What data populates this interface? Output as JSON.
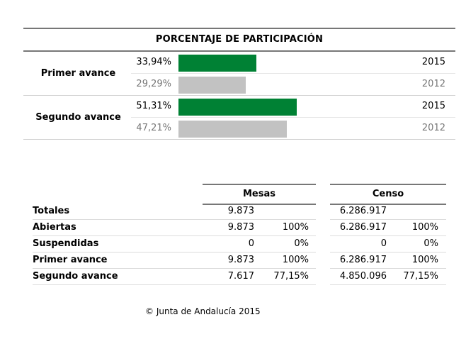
{
  "participation": {
    "title": "PORCENTAJE DE PARTICIPACIÓN",
    "colors": {
      "current": "#008134",
      "previous": "#c2c2c2"
    },
    "groups": [
      {
        "label": "Primer avance",
        "rows": [
          {
            "pct": "33,94%",
            "value": 33.94,
            "year": "2015"
          },
          {
            "pct": "29,29%",
            "value": 29.29,
            "year": "2012"
          }
        ]
      },
      {
        "label": "Segundo avance",
        "rows": [
          {
            "pct": "51,31%",
            "value": 51.31,
            "year": "2015"
          },
          {
            "pct": "47,21%",
            "value": 47.21,
            "year": "2012"
          }
        ]
      }
    ]
  },
  "table": {
    "headers": {
      "mesas": "Mesas",
      "censo": "Censo"
    },
    "rows": [
      {
        "label": "Totales",
        "mesas": "9.873",
        "mesas_pct": "",
        "censo": "6.286.917",
        "censo_pct": ""
      },
      {
        "label": "Abiertas",
        "mesas": "9.873",
        "mesas_pct": "100%",
        "censo": "6.286.917",
        "censo_pct": "100%"
      },
      {
        "label": "Suspendidas",
        "mesas": "0",
        "mesas_pct": "0%",
        "censo": "0",
        "censo_pct": "0%"
      },
      {
        "label": "Primer avance",
        "mesas": "9.873",
        "mesas_pct": "100%",
        "censo": "6.286.917",
        "censo_pct": "100%"
      },
      {
        "label": "Segundo avance",
        "mesas": "7.617",
        "mesas_pct": "77,15%",
        "censo": "4.850.096",
        "censo_pct": "77,15%"
      }
    ]
  },
  "footer": "© Junta de Andalucía 2015"
}
